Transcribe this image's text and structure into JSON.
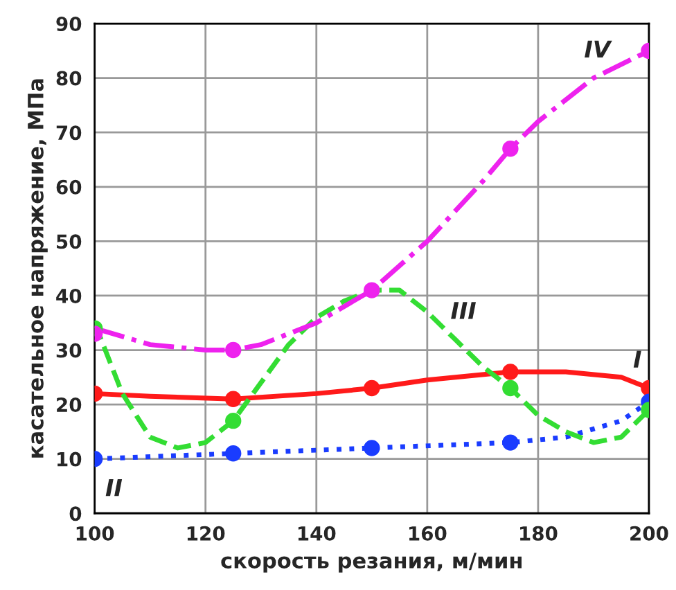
{
  "chart_data": {
    "type": "line",
    "xlabel": "скорость резания, м/мин",
    "ylabel": "касательное напряжение, МПа",
    "xlim": [
      100,
      200
    ],
    "xticks": [
      100,
      120,
      140,
      160,
      180,
      200
    ],
    "ylim": [
      0,
      90
    ],
    "yticks": [
      0,
      10,
      20,
      30,
      40,
      50,
      60,
      70,
      80,
      90
    ],
    "grid": true,
    "series": [
      {
        "name": "I",
        "color": "#ff1a1a",
        "line_style": "solid",
        "x": [
          100,
          110,
          125,
          140,
          150,
          160,
          175,
          185,
          195,
          200
        ],
        "values": [
          22,
          21.5,
          21,
          22,
          23,
          24.5,
          26,
          26,
          25,
          23
        ]
      },
      {
        "type": "scatter",
        "color": "#ff1a1a",
        "marker": "circle",
        "x": [
          100,
          125,
          150,
          175,
          200
        ],
        "values": [
          22,
          21,
          23,
          26,
          23
        ]
      },
      {
        "name": "II",
        "color": "#1a3cff",
        "line_style": "dotted",
        "x": [
          100,
          125,
          150,
          175,
          185,
          195,
          200
        ],
        "values": [
          10,
          11,
          12,
          13,
          14,
          17,
          20.5
        ]
      },
      {
        "type": "scatter",
        "color": "#1a3cff",
        "marker": "circle",
        "x": [
          100,
          125,
          150,
          175,
          200
        ],
        "values": [
          10,
          11,
          12,
          13,
          20.5
        ]
      },
      {
        "name": "III",
        "color": "#33dd33",
        "line_style": "dashed",
        "x": [
          100,
          105,
          110,
          115,
          120,
          125,
          130,
          135,
          140,
          145,
          150,
          155,
          160,
          165,
          170,
          175,
          180,
          185,
          190,
          195,
          200
        ],
        "values": [
          35,
          22,
          14,
          12,
          13,
          17,
          24,
          31,
          36,
          39,
          41,
          41,
          37,
          32,
          27,
          23,
          18,
          15,
          13,
          14,
          19
        ]
      },
      {
        "type": "scatter",
        "color": "#33dd33",
        "marker": "circle",
        "x": [
          100,
          125,
          150,
          175,
          200
        ],
        "values": [
          34,
          17,
          null,
          23,
          19
        ]
      },
      {
        "name": "IV",
        "color": "#ee22ee",
        "line_style": "dashdot",
        "x": [
          100,
          110,
          120,
          125,
          130,
          140,
          150,
          160,
          170,
          175,
          180,
          190,
          200
        ],
        "values": [
          34,
          31,
          30,
          30,
          31,
          35,
          41,
          50,
          61,
          67,
          72,
          80,
          85
        ]
      },
      {
        "type": "scatter",
        "color": "#ee22ee",
        "marker": "circle",
        "x": [
          100,
          125,
          150,
          175,
          200
        ],
        "values": [
          33,
          30,
          41,
          67,
          85
        ]
      }
    ]
  }
}
